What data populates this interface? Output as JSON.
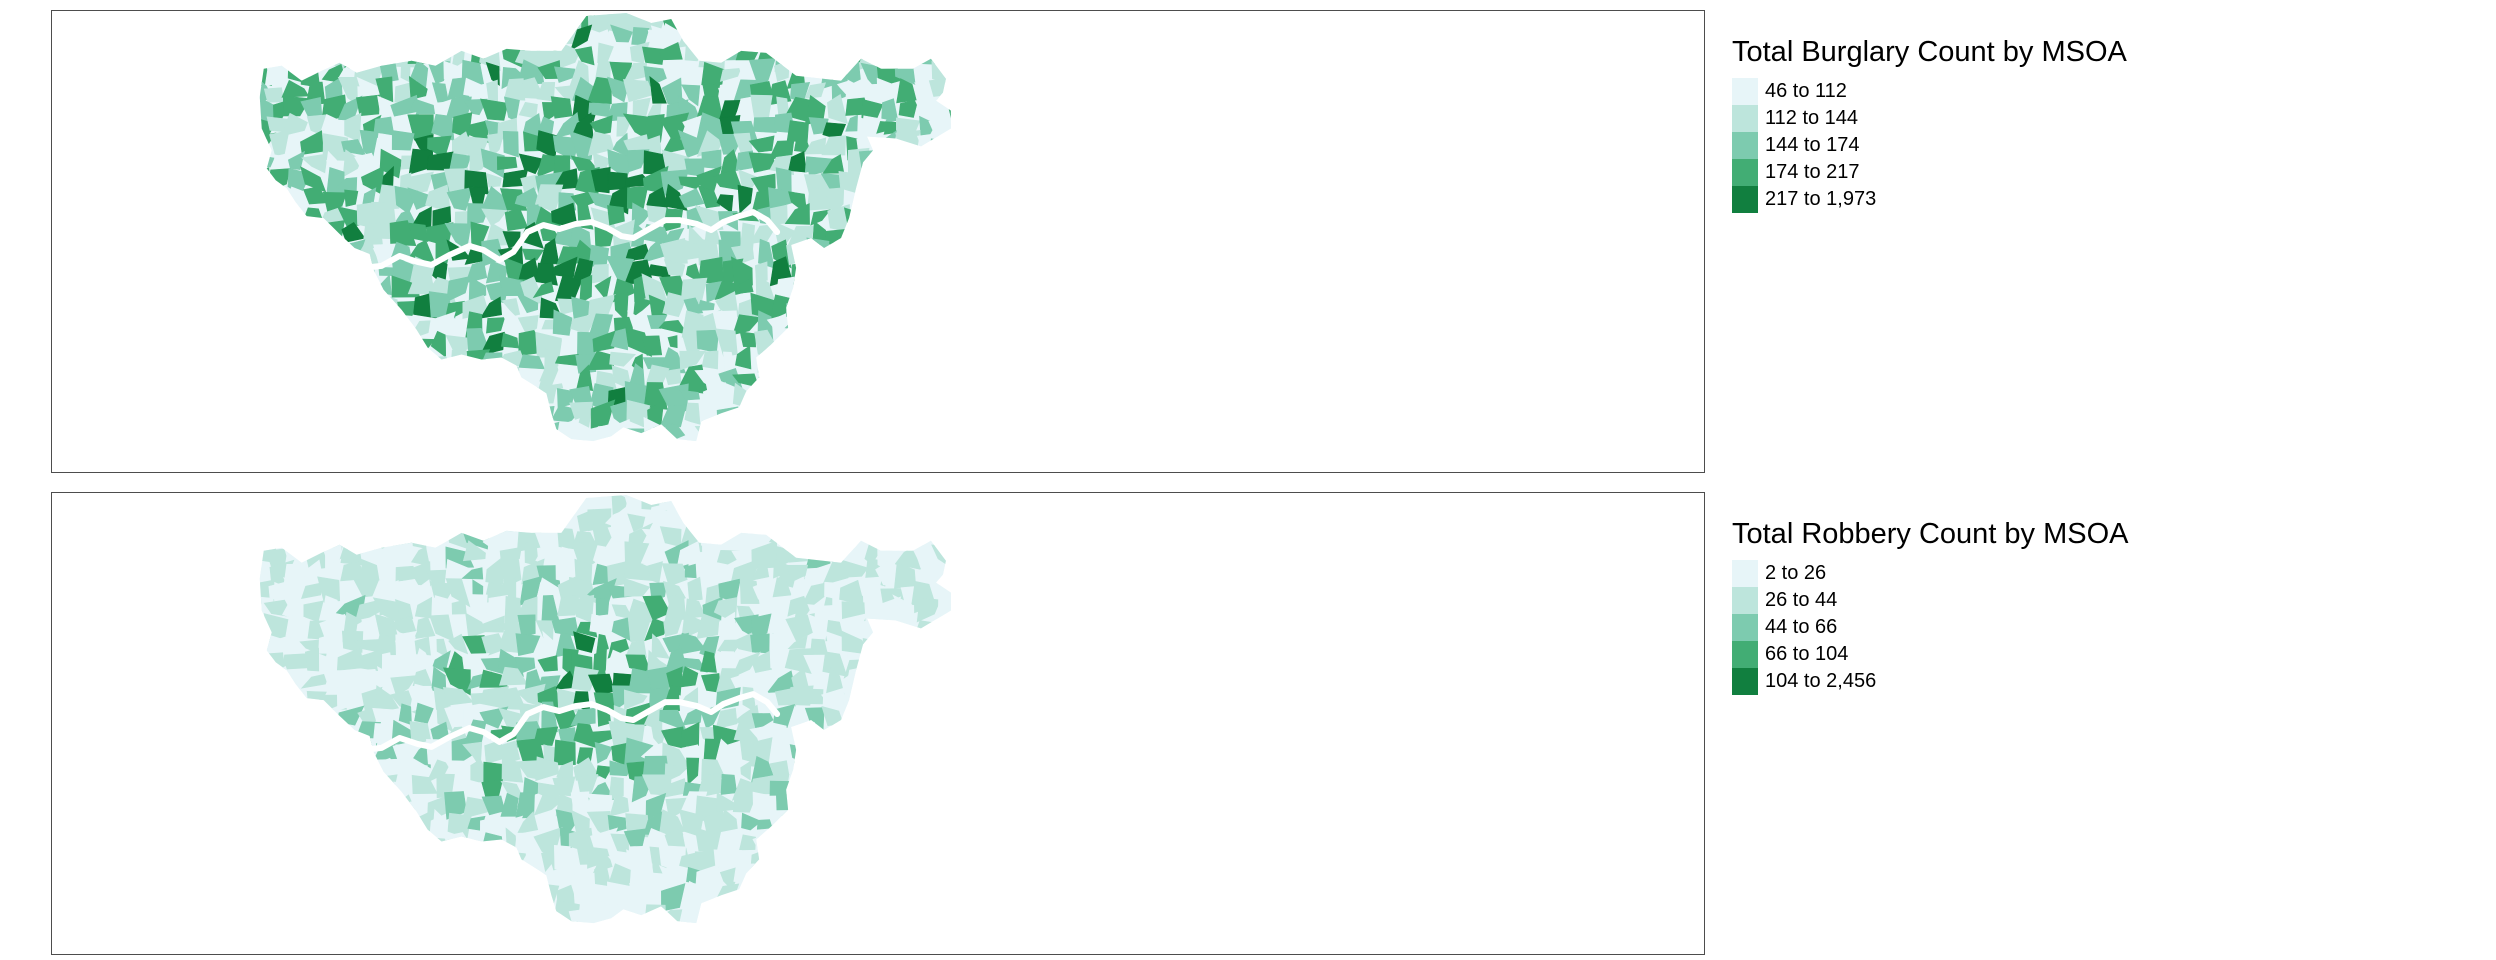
{
  "maps": [
    {
      "id": "burglary",
      "title": "Total Burglary Count by MSOA",
      "legend": [
        {
          "label": "46 to 112",
          "color": "#e7f5f8"
        },
        {
          "label": "112 to 144",
          "color": "#bde5dc"
        },
        {
          "label": "144 to 174",
          "color": "#7dcbaf"
        },
        {
          "label": "174 to 217",
          "color": "#42ad74"
        },
        {
          "label": "217 to 1,973",
          "color": "#117f3f"
        }
      ],
      "class_weights": [
        0.16,
        0.18,
        0.2,
        0.22,
        0.24
      ],
      "center_bias": 1.1,
      "seed": 7
    },
    {
      "id": "robbery",
      "title": "Total Robbery Count by MSOA",
      "legend": [
        {
          "label": "2 to 26",
          "color": "#e7f5f8"
        },
        {
          "label": "26 to 44",
          "color": "#bde5dc"
        },
        {
          "label": "44 to 66",
          "color": "#7dcbaf"
        },
        {
          "label": "66 to 104",
          "color": "#42ad74"
        },
        {
          "label": "104 to 2,456",
          "color": "#117f3f"
        }
      ],
      "class_weights": [
        0.34,
        0.22,
        0.18,
        0.14,
        0.12
      ],
      "center_bias": 2.4,
      "seed": 23
    }
  ]
}
